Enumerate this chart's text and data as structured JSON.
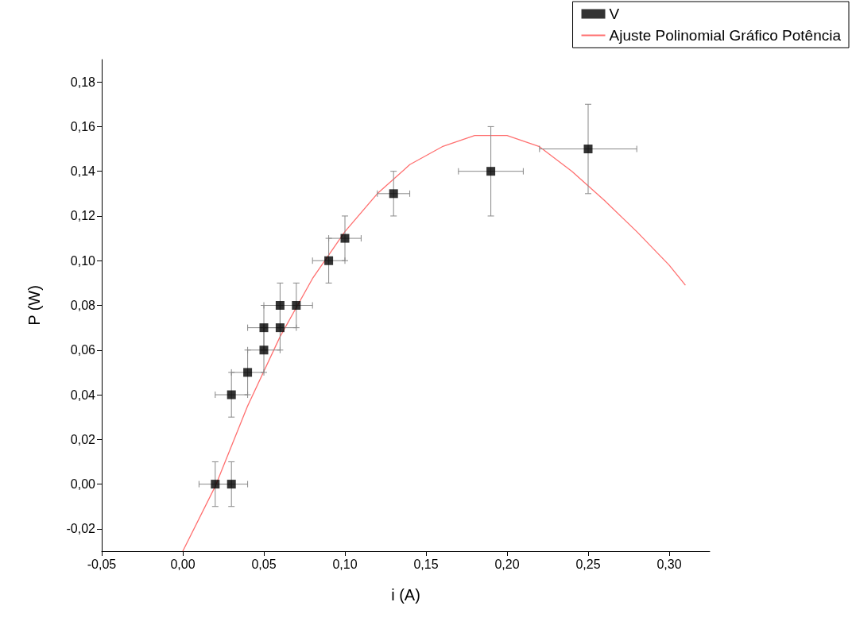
{
  "chart_data": {
    "type": "scatter",
    "xlabel": "i (A)",
    "ylabel": "P (W)",
    "xlim": [
      -0.05,
      0.325
    ],
    "ylim": [
      -0.03,
      0.19
    ],
    "xticks": [
      {
        "value": -0.05,
        "label": "-0,05"
      },
      {
        "value": 0,
        "label": "0,00"
      },
      {
        "value": 0.05,
        "label": "0,05"
      },
      {
        "value": 0.1,
        "label": "0,10"
      },
      {
        "value": 0.15,
        "label": "0,15"
      },
      {
        "value": 0.2,
        "label": "0,20"
      },
      {
        "value": 0.25,
        "label": "0,25"
      },
      {
        "value": 0.3,
        "label": "0,30"
      }
    ],
    "yticks": [
      {
        "value": -0.02,
        "label": "-0,02"
      },
      {
        "value": 0,
        "label": "0,00"
      },
      {
        "value": 0.02,
        "label": "0,02"
      },
      {
        "value": 0.04,
        "label": "0,04"
      },
      {
        "value": 0.06,
        "label": "0,06"
      },
      {
        "value": 0.08,
        "label": "0,08"
      },
      {
        "value": 0.1,
        "label": "0,10"
      },
      {
        "value": 0.12,
        "label": "0,12"
      },
      {
        "value": 0.14,
        "label": "0,14"
      },
      {
        "value": 0.16,
        "label": "0,16"
      },
      {
        "value": 0.18,
        "label": "0,18"
      }
    ],
    "grid": false,
    "legend": "top right",
    "series": [
      {
        "name": "V",
        "color": "#000000",
        "marker": "square",
        "x": [
          0.02,
          0.03,
          0.03,
          0.04,
          0.05,
          0.05,
          0.06,
          0.06,
          0.07,
          0.09,
          0.1,
          0.13,
          0.19,
          0.25
        ],
        "values": [
          0,
          0,
          0.04,
          0.05,
          0.06,
          0.07,
          0.07,
          0.08,
          0.08,
          0.1,
          0.11,
          0.13,
          0.14,
          0.15
        ],
        "errors": [
          0.01,
          0.01,
          0.01,
          0.01,
          0.01,
          0.01,
          0.01,
          0.01,
          0.01,
          0.01,
          0.01,
          0.01,
          0.02,
          0.02
        ],
        "xerrors": [
          0.01,
          0.01,
          0.01,
          0.01,
          0.01,
          0.01,
          0.01,
          0.01,
          0.01,
          0.01,
          0.01,
          0.01,
          0.02,
          0.03
        ]
      },
      {
        "name": "Ajuste Polinomial Gráfico Potência",
        "type": "line",
        "color": "#ff7070",
        "marker": "none",
        "line_style": "solid",
        "x": [
          0,
          0.02,
          0.04,
          0.06,
          0.08,
          0.1,
          0.12,
          0.14,
          0.16,
          0.18,
          0.2,
          0.22,
          0.24,
          0.26,
          0.28,
          0.3,
          0.31
        ],
        "values": [
          -0.03,
          -0.001,
          0.035,
          0.066,
          0.092,
          0.113,
          0.13,
          0.143,
          0.151,
          0.156,
          0.156,
          0.151,
          0.14,
          0.127,
          0.113,
          0.098,
          0.089
        ]
      }
    ]
  }
}
